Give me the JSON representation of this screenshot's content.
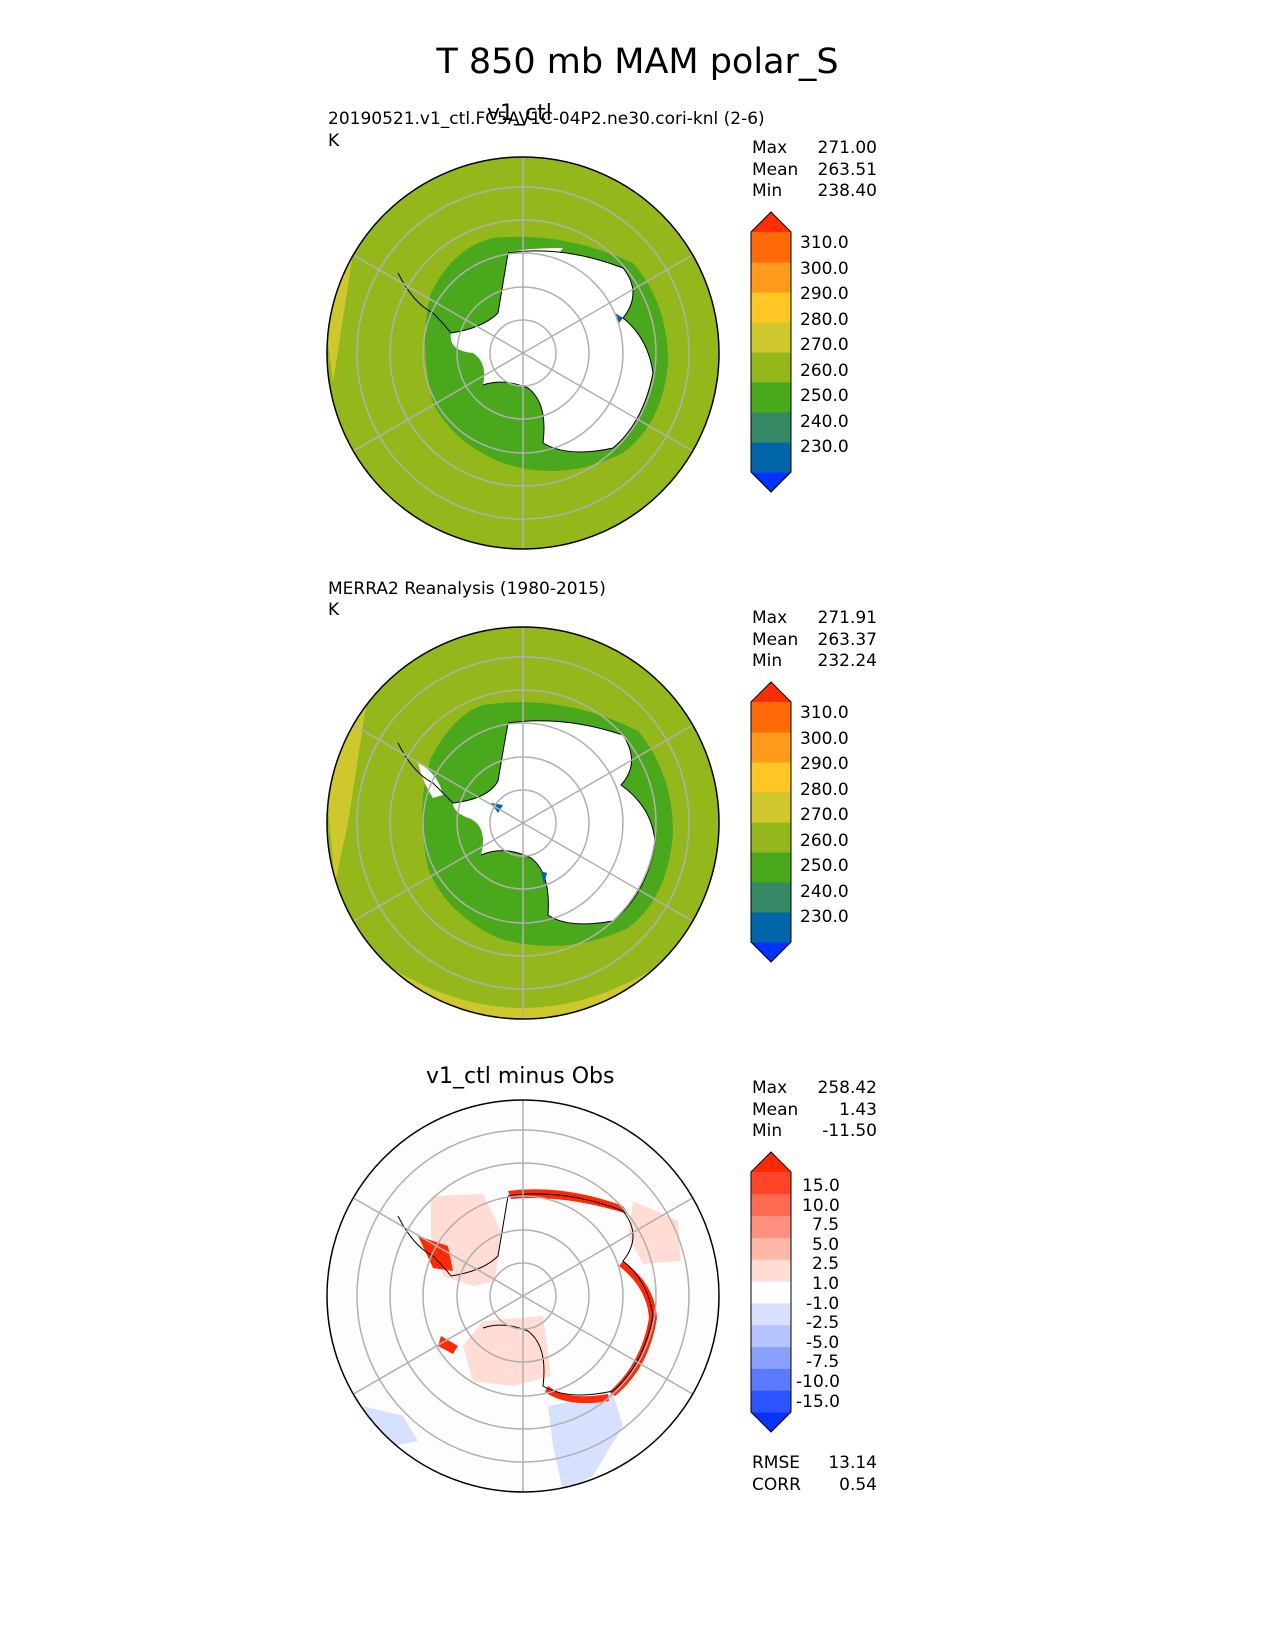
{
  "title": "T 850 mb MAM polar_S",
  "colors": {
    "abs_levels": [
      "#0033ff",
      "#0066a8",
      "#348864",
      "#4aa81c",
      "#94b81c",
      "#cec82c",
      "#ffc624",
      "#ff9a1a",
      "#ff6a08",
      "#ff2d05"
    ],
    "diff_levels": [
      "#0a32ff",
      "#2d55ff",
      "#5a7bff",
      "#8aa0ff",
      "#b5c4ff",
      "#d8e0ff",
      "#ffffff",
      "#ffdcd4",
      "#ffb8a8",
      "#ff9080",
      "#ff6a52",
      "#ff4528",
      "#ff2a04"
    ],
    "land": "#ffffff",
    "grid": "#b0b0b0",
    "coast": "#000000"
  },
  "panels": [
    {
      "id": "test",
      "title": "v1_ctl",
      "name_label": "20190521.v1_ctl.FC5AV1C-04P2.ne30.cori-knl (2-6)",
      "units": "K",
      "stats": [
        [
          "Max",
          "271.00"
        ],
        [
          "Mean",
          "263.51"
        ],
        [
          "Min",
          "238.40"
        ]
      ],
      "colorbar_ticks": [
        "310.0",
        "300.0",
        "290.0",
        "280.0",
        "270.0",
        "260.0",
        "250.0",
        "240.0",
        "230.0"
      ]
    },
    {
      "id": "ref",
      "title": "",
      "name_label": "MERRA2 Reanalysis (1980-2015)",
      "units": "K",
      "stats": [
        [
          "Max",
          "271.91"
        ],
        [
          "Mean",
          "263.37"
        ],
        [
          "Min",
          "232.24"
        ]
      ],
      "colorbar_ticks": [
        "310.0",
        "300.0",
        "290.0",
        "280.0",
        "270.0",
        "260.0",
        "250.0",
        "240.0",
        "230.0"
      ]
    },
    {
      "id": "diff",
      "title": "v1_ctl minus Obs",
      "name_label": "",
      "units": "",
      "stats": [
        [
          "Max",
          "258.42"
        ],
        [
          "Mean",
          "1.43"
        ],
        [
          "Min",
          "-11.50"
        ]
      ],
      "colorbar_ticks": [
        "15.0",
        "10.0",
        "7.5",
        "5.0",
        "2.5",
        "1.0",
        "-1.0",
        "-2.5",
        "-5.0",
        "-7.5",
        "-10.0",
        "-15.0"
      ],
      "metrics": [
        [
          "RMSE",
          "13.14"
        ],
        [
          "CORR",
          "0.54"
        ]
      ]
    }
  ],
  "chart_data": [
    {
      "type": "heatmap",
      "projection": "south polar stereographic",
      "title": "v1_ctl",
      "variable": "T 850 mb",
      "season": "MAM",
      "units": "K",
      "levels": [
        230,
        240,
        250,
        260,
        270,
        280,
        290,
        300,
        310
      ],
      "extend": "both",
      "stats": {
        "max": 271.0,
        "mean": 263.51,
        "min": 238.4
      },
      "field_regions": [
        {
          "region": "outer ocean ring",
          "value_range": [
            260,
            270
          ]
        },
        {
          "region": "Antarctic coastal ring",
          "value_range": [
            250,
            260
          ]
        },
        {
          "region": "Antarctic interior (below 850 mb)",
          "value_range": null
        }
      ]
    },
    {
      "type": "heatmap",
      "projection": "south polar stereographic",
      "title": "MERRA2 Reanalysis (1980-2015)",
      "variable": "T 850 mb",
      "season": "MAM",
      "units": "K",
      "levels": [
        230,
        240,
        250,
        260,
        270,
        280,
        290,
        300,
        310
      ],
      "extend": "both",
      "stats": {
        "max": 271.91,
        "mean": 263.37,
        "min": 232.24
      },
      "field_regions": [
        {
          "region": "outer ocean ring",
          "value_range": [
            260,
            270
          ]
        },
        {
          "region": "northern edge",
          "value_range": [
            270,
            280
          ]
        },
        {
          "region": "Antarctic coastal ring",
          "value_range": [
            250,
            260
          ]
        },
        {
          "region": "Antarctic interior (below 850 mb)",
          "value_range": null
        }
      ]
    },
    {
      "type": "heatmap",
      "projection": "south polar stereographic",
      "title": "v1_ctl minus Obs",
      "variable": "T 850 mb difference",
      "season": "MAM",
      "levels": [
        -15,
        -10,
        -7.5,
        -5,
        -2.5,
        -1,
        1,
        2.5,
        5,
        7.5,
        10,
        15
      ],
      "extend": "both",
      "stats": {
        "max": 258.42,
        "mean": 1.43,
        "min": -11.5
      },
      "metrics": {
        "rmse": 13.14,
        "corr": 0.54
      },
      "field_regions": [
        {
          "region": "most of domain",
          "value_range": [
            -1,
            1
          ]
        },
        {
          "region": "Weddell and Ross Sea shelves",
          "value_range": [
            1,
            2.5
          ]
        },
        {
          "region": "Antarctic coastline fringe",
          "value_range": [
            15,
            null
          ]
        },
        {
          "region": "southern ocean patches",
          "value_range": [
            -2.5,
            -1
          ]
        }
      ]
    }
  ]
}
